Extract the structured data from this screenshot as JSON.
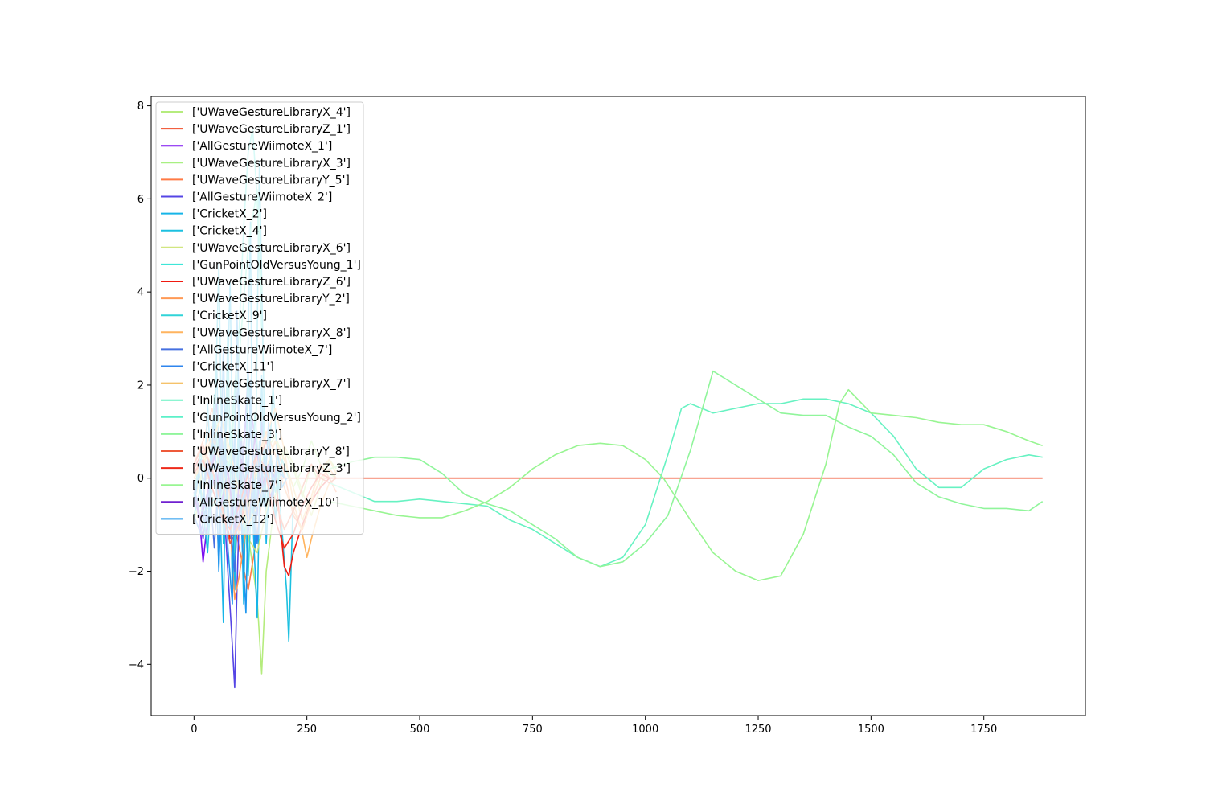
{
  "chart_data": {
    "type": "line",
    "title": "",
    "xlabel": "",
    "ylabel": "",
    "xlim": [
      -95,
      1975
    ],
    "ylim": [
      -5.1,
      8.2
    ],
    "xticks": [
      0,
      250,
      500,
      750,
      1000,
      1250,
      1500,
      1750
    ],
    "yticks": [
      -4,
      -2,
      0,
      2,
      4,
      6,
      8
    ],
    "xtick_labels": [
      "0",
      "250",
      "500",
      "750",
      "1000",
      "1250",
      "1500",
      "1750"
    ],
    "ytick_labels": [
      "−4",
      "−2",
      "0",
      "2",
      "4",
      "6",
      "8"
    ],
    "grid": false,
    "legend_position": "upper-left",
    "series": [
      {
        "name": "['UWaveGestureLibraryX_4']",
        "color": "#b5ec7d",
        "x": [
          0,
          20,
          40,
          60,
          80,
          100,
          120,
          140,
          150,
          160,
          180,
          200,
          220,
          240,
          260,
          280,
          300,
          315
        ],
        "y": [
          -0.9,
          -0.3,
          0.4,
          0.9,
          0.2,
          -0.6,
          -1.2,
          -2.6,
          -4.2,
          -2.0,
          -0.4,
          0.6,
          0.2,
          -0.4,
          0.3,
          -0.2,
          0.4,
          0.2
        ]
      },
      {
        "name": "['UWaveGestureLibraryZ_1']",
        "color": "#f04a25",
        "x": [
          0,
          1880
        ],
        "y": [
          0.0,
          0.0
        ]
      },
      {
        "name": "['AllGestureWiimoteX_1']",
        "color": "#7a0ff0",
        "x": [
          0,
          10,
          20,
          30,
          40,
          60,
          80,
          100,
          120,
          140,
          160,
          180
        ],
        "y": [
          -0.2,
          -0.6,
          -1.8,
          -0.9,
          -0.2,
          0.6,
          0.2,
          -0.4,
          1.8,
          0.6,
          -0.3,
          0.1
        ]
      },
      {
        "name": "['UWaveGestureLibraryX_3']",
        "color": "#a8f082",
        "x": [
          0,
          20,
          40,
          60,
          80,
          100,
          120,
          140,
          160,
          180,
          200,
          220,
          240,
          260,
          280,
          300,
          315
        ],
        "y": [
          -0.4,
          0.1,
          0.5,
          0.2,
          -0.5,
          -1.0,
          -0.6,
          0.1,
          0.6,
          0.9,
          0.4,
          -0.2,
          0.2,
          0.8,
          0.3,
          0.1,
          0.0
        ]
      },
      {
        "name": "['UWaveGestureLibraryY_5']",
        "color": "#ff7a45",
        "x": [
          0,
          20,
          40,
          60,
          80,
          100,
          120,
          140,
          160,
          180,
          200,
          220,
          240,
          260,
          280,
          300,
          315
        ],
        "y": [
          0.3,
          0.8,
          1.5,
          0.6,
          -0.4,
          -1.5,
          -2.4,
          -1.2,
          0.2,
          0.8,
          0.1,
          -0.8,
          -1.1,
          -0.4,
          0.3,
          0.0,
          -0.3
        ]
      },
      {
        "name": "['AllGestureWiimoteX_2']",
        "color": "#5545e5",
        "x": [
          0,
          10,
          20,
          30,
          40,
          50,
          60,
          70,
          80,
          85,
          90,
          95,
          100,
          110,
          120,
          130,
          140,
          150,
          160,
          170,
          180
        ],
        "y": [
          -0.3,
          -0.8,
          -1.3,
          -0.5,
          0.4,
          1.6,
          0.4,
          -1.2,
          -2.8,
          -3.6,
          -4.5,
          -2.4,
          -0.8,
          0.6,
          2.3,
          0.4,
          -0.8,
          1.2,
          0.2,
          -0.4,
          0.0
        ]
      },
      {
        "name": "['CricketX_2']",
        "color": "#16b5e8",
        "x": [
          0,
          10,
          20,
          30,
          40,
          50,
          60,
          65,
          70,
          80,
          90,
          100,
          110,
          120,
          125,
          130,
          140,
          150,
          160,
          170,
          180,
          190,
          200
        ],
        "y": [
          -0.5,
          0.3,
          -0.9,
          1.6,
          -0.3,
          2.5,
          -1.4,
          -3.1,
          0.5,
          4.2,
          -2.4,
          1.1,
          -2.7,
          3.0,
          5.5,
          -0.8,
          -3.0,
          2.2,
          -1.4,
          0.6,
          -0.9,
          0.3,
          0.0
        ]
      },
      {
        "name": "['CricketX_4']",
        "color": "#1cc0e0",
        "x": [
          0,
          15,
          30,
          45,
          55,
          65,
          75,
          85,
          100,
          110,
          120,
          135,
          145,
          160,
          175,
          190,
          205,
          210,
          220
        ],
        "y": [
          -0.8,
          -0.2,
          -1.6,
          0.8,
          4.6,
          -1.4,
          3.2,
          -2.5,
          1.6,
          -1.7,
          2.2,
          -0.6,
          6.8,
          -0.9,
          2.0,
          -0.5,
          -2.4,
          -3.5,
          -0.4
        ]
      },
      {
        "name": "['UWaveGestureLibraryX_6']",
        "color": "#d1e680",
        "x": [
          0,
          20,
          40,
          60,
          80,
          100,
          120,
          140,
          160,
          180,
          200,
          220,
          240,
          260,
          280,
          300,
          315
        ],
        "y": [
          -0.5,
          0.2,
          0.9,
          1.3,
          0.4,
          -0.5,
          -1.3,
          -1.6,
          -0.7,
          0.2,
          0.7,
          0.3,
          -0.3,
          -0.8,
          -0.2,
          0.4,
          0.1
        ]
      },
      {
        "name": "['GunPointOldVersusYoung_1']",
        "color": "#3ee6d8",
        "x": [
          0,
          20,
          40,
          60,
          80,
          100,
          110,
          120,
          130,
          140,
          150
        ],
        "y": [
          -0.6,
          -0.6,
          -0.5,
          -0.3,
          0.6,
          3.2,
          5.4,
          7.0,
          7.5,
          6.0,
          3.2
        ]
      },
      {
        "name": "['UWaveGestureLibraryZ_6']",
        "color": "#f01a10",
        "x": [
          0,
          20,
          40,
          60,
          80,
          100,
          120,
          140,
          160,
          180,
          200,
          210,
          220,
          240,
          260,
          280,
          300,
          315
        ],
        "y": [
          0.2,
          0.6,
          0.2,
          -0.5,
          -1.3,
          -1.0,
          -0.4,
          0.3,
          0.8,
          0.1,
          -1.9,
          -2.1,
          -1.6,
          -1.0,
          -0.5,
          -0.2,
          0.0,
          0.0
        ]
      },
      {
        "name": "['UWaveGestureLibraryY_2']",
        "color": "#ff9955",
        "x": [
          0,
          20,
          40,
          60,
          80,
          90,
          100,
          120,
          140,
          160,
          180,
          200,
          220,
          240,
          260,
          280,
          300,
          315
        ],
        "y": [
          0.1,
          0.5,
          1.1,
          0.4,
          -1.0,
          -2.6,
          -2.1,
          -0.8,
          0.4,
          1.0,
          0.5,
          -0.2,
          -0.7,
          -1.1,
          -0.5,
          0.0,
          0.2,
          0.0
        ]
      },
      {
        "name": "['CricketX_9']",
        "color": "#30d4d8",
        "x": [
          0,
          15,
          30,
          45,
          60,
          75,
          90,
          105,
          120,
          135,
          150,
          165,
          180,
          195,
          210
        ],
        "y": [
          -0.4,
          0.6,
          -1.2,
          1.8,
          -0.8,
          2.4,
          -1.6,
          0.9,
          -2.1,
          1.4,
          -0.6,
          0.9,
          -0.3,
          0.4,
          0.0
        ]
      },
      {
        "name": "['UWaveGestureLibraryX_8']",
        "color": "#ffb45f",
        "x": [
          0,
          20,
          40,
          60,
          80,
          100,
          120,
          140,
          160,
          180,
          200,
          220,
          240,
          250,
          260,
          280,
          300,
          315
        ],
        "y": [
          0.0,
          0.4,
          0.9,
          0.3,
          -0.6,
          -1.2,
          -0.5,
          0.3,
          0.9,
          1.5,
          0.6,
          -0.5,
          -1.2,
          -1.7,
          -1.3,
          -0.6,
          -0.1,
          0.0
        ]
      },
      {
        "name": "['AllGestureWiimoteX_7']",
        "color": "#4670e0",
        "x": [
          0,
          15,
          30,
          45,
          60,
          75,
          90,
          105,
          120,
          135,
          150,
          165,
          180
        ],
        "y": [
          -0.2,
          -0.9,
          0.4,
          -1.5,
          1.1,
          -0.6,
          -2.0,
          0.8,
          -1.2,
          0.5,
          -0.3,
          0.2,
          0.0
        ]
      },
      {
        "name": "['CricketX_11']",
        "color": "#2e85ee",
        "x": [
          0,
          15,
          30,
          45,
          55,
          65,
          80,
          95,
          110,
          125,
          140,
          155,
          170,
          185,
          200
        ],
        "y": [
          -0.8,
          -1.2,
          -0.4,
          1.2,
          -1.9,
          0.6,
          -1.1,
          2.0,
          -0.7,
          1.1,
          -1.4,
          0.4,
          -0.5,
          0.2,
          0.0
        ]
      },
      {
        "name": "['UWaveGestureLibraryX_7']",
        "color": "#f5c26a",
        "x": [
          0,
          20,
          40,
          60,
          80,
          100,
          120,
          140,
          160,
          180,
          200,
          220,
          240,
          260,
          280,
          300,
          315
        ],
        "y": [
          0.0,
          0.3,
          0.8,
          1.3,
          0.6,
          -0.3,
          -1.0,
          -0.6,
          0.2,
          0.8,
          0.4,
          -0.2,
          -0.9,
          -0.4,
          0.2,
          0.4,
          0.1
        ]
      },
      {
        "name": "['InlineSkate_1']",
        "color": "#67f2c2",
        "x": [
          300,
          350,
          400,
          450,
          500,
          550,
          600,
          650,
          700,
          750,
          800,
          850,
          900,
          950,
          1000,
          1050,
          1080,
          1100,
          1150,
          1200,
          1250,
          1300,
          1350,
          1400,
          1450,
          1500,
          1550,
          1600,
          1650,
          1700,
          1750,
          1800,
          1850,
          1880
        ],
        "y": [
          -0.1,
          -0.3,
          -0.5,
          -0.5,
          -0.45,
          -0.5,
          -0.55,
          -0.6,
          -0.9,
          -1.1,
          -1.4,
          -1.7,
          -1.9,
          -1.7,
          -1.0,
          0.5,
          1.5,
          1.6,
          1.4,
          1.5,
          1.6,
          1.6,
          1.7,
          1.7,
          1.6,
          1.4,
          0.9,
          0.2,
          -0.2,
          -0.2,
          0.2,
          0.4,
          0.5,
          0.45
        ]
      },
      {
        "name": "['GunPointOldVersusYoung_2']",
        "color": "#5cf0c8",
        "x": [
          0,
          20,
          40,
          60,
          80,
          100,
          120,
          140,
          150
        ],
        "y": [
          -0.7,
          -0.7,
          -0.6,
          -0.4,
          0.4,
          2.6,
          5.0,
          6.2,
          4.0
        ]
      },
      {
        "name": "['InlineSkate_3']",
        "color": "#90f59b",
        "x": [
          300,
          350,
          400,
          450,
          500,
          550,
          600,
          650,
          700,
          750,
          800,
          850,
          900,
          950,
          1000,
          1050,
          1100,
          1150,
          1200,
          1250,
          1300,
          1350,
          1400,
          1450,
          1500,
          1550,
          1600,
          1650,
          1700,
          1750,
          1800,
          1850,
          1880
        ],
        "y": [
          0.2,
          0.35,
          0.45,
          0.45,
          0.4,
          0.1,
          -0.35,
          -0.55,
          -0.7,
          -1.0,
          -1.3,
          -1.7,
          -1.9,
          -1.8,
          -1.4,
          -0.8,
          0.6,
          2.3,
          2.0,
          1.7,
          1.4,
          1.35,
          1.35,
          1.1,
          0.9,
          0.5,
          -0.1,
          -0.4,
          -0.55,
          -0.65,
          -0.65,
          -0.7,
          -0.5
        ]
      },
      {
        "name": "['UWaveGestureLibraryY_8']",
        "color": "#ee5a3a",
        "x": [
          0,
          20,
          40,
          60,
          80,
          100,
          120,
          140,
          160,
          180,
          200,
          220,
          240,
          260,
          280,
          300,
          315
        ],
        "y": [
          0.3,
          0.7,
          0.2,
          -0.6,
          -1.4,
          -1.0,
          -0.2,
          0.5,
          0.2,
          -0.5,
          -1.1,
          -0.7,
          -0.2,
          0.3,
          0.0,
          -0.1,
          0.0
        ]
      },
      {
        "name": "['UWaveGestureLibraryZ_3']",
        "color": "#ee2a1a",
        "x": [
          0,
          20,
          40,
          60,
          80,
          100,
          120,
          140,
          160,
          180,
          200,
          220,
          240,
          260,
          280,
          300,
          315
        ],
        "y": [
          0.1,
          0.4,
          -0.2,
          -0.8,
          -1.1,
          -0.6,
          0.1,
          0.5,
          0.0,
          -0.9,
          -1.5,
          -1.2,
          -0.6,
          -0.2,
          0.1,
          0.0,
          0.0
        ]
      },
      {
        "name": "['InlineSkate_7']",
        "color": "#98f592",
        "x": [
          300,
          350,
          400,
          450,
          500,
          550,
          600,
          650,
          700,
          750,
          800,
          850,
          900,
          950,
          1000,
          1040,
          1100,
          1150,
          1200,
          1250,
          1300,
          1350,
          1400,
          1430,
          1450,
          1500,
          1550,
          1600,
          1650,
          1700,
          1750,
          1800,
          1850,
          1880
        ],
        "y": [
          -0.5,
          -0.6,
          -0.7,
          -0.8,
          -0.85,
          -0.85,
          -0.7,
          -0.5,
          -0.2,
          0.2,
          0.5,
          0.7,
          0.75,
          0.7,
          0.4,
          0.0,
          -0.9,
          -1.6,
          -2.0,
          -2.2,
          -2.1,
          -1.2,
          0.3,
          1.6,
          1.9,
          1.4,
          1.35,
          1.3,
          1.2,
          1.15,
          1.15,
          1.0,
          0.8,
          0.7
        ]
      },
      {
        "name": "['AllGestureWiimoteX_10']",
        "color": "#7020d0",
        "x": [
          0,
          15,
          30,
          45,
          60,
          75,
          90,
          105,
          120,
          135,
          150,
          165,
          180
        ],
        "y": [
          -0.4,
          -0.9,
          -0.3,
          0.5,
          -0.6,
          0.2,
          -1.1,
          0.4,
          -0.5,
          0.9,
          -0.2,
          0.3,
          0.0
        ]
      },
      {
        "name": "['CricketX_12']",
        "color": "#1e96ee",
        "x": [
          0,
          15,
          30,
          45,
          55,
          65,
          75,
          85,
          95,
          105,
          115,
          125,
          135,
          145,
          155,
          165,
          175,
          185,
          195,
          205
        ],
        "y": [
          -0.6,
          0.4,
          -1.1,
          1.5,
          -2.0,
          2.8,
          -1.5,
          -2.7,
          3.6,
          -1.0,
          -2.9,
          2.1,
          -1.5,
          0.8,
          -0.6,
          1.2,
          -0.4,
          0.6,
          -0.2,
          0.0
        ]
      }
    ]
  }
}
